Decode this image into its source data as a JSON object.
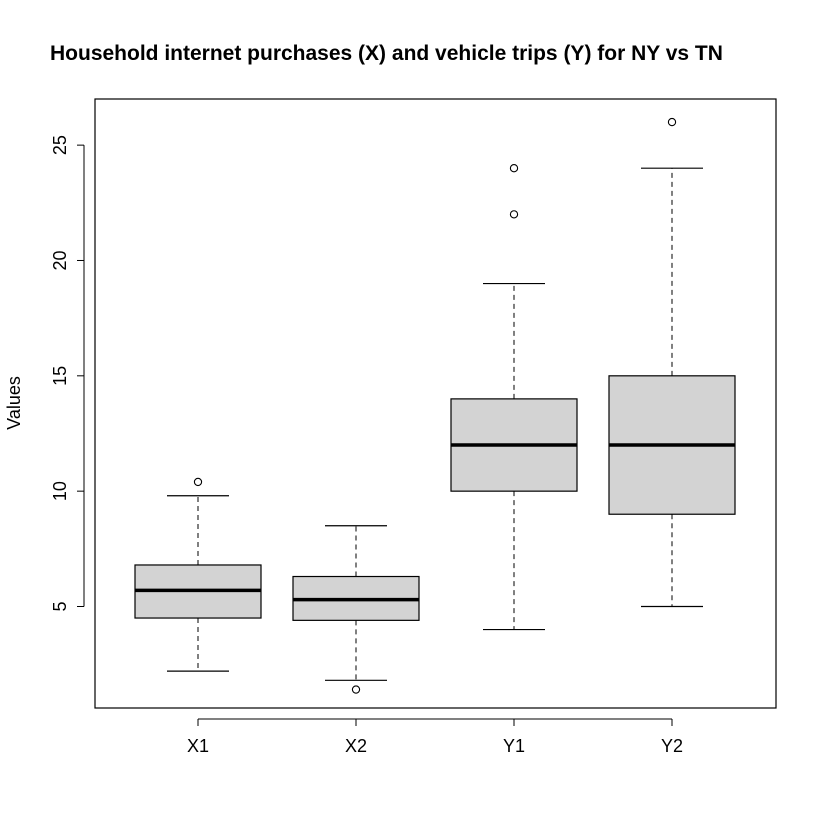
{
  "chart_data": {
    "type": "boxplot",
    "title": "Household internet purchases (X) and vehicle trips (Y) for NY vs TN",
    "xlabel": "",
    "ylabel": "Values",
    "ylim": [
      0.6,
      27.0
    ],
    "yticks": [
      5,
      10,
      15,
      20,
      25
    ],
    "grid": false,
    "categories": [
      "X1",
      "X2",
      "Y1",
      "Y2"
    ],
    "boxes": [
      {
        "category": "X1",
        "whisker_low": 2.2,
        "q1": 4.5,
        "median": 5.7,
        "q3": 6.8,
        "whisker_high": 9.8,
        "outliers": [
          10.4
        ]
      },
      {
        "category": "X2",
        "whisker_low": 1.8,
        "q1": 4.4,
        "median": 5.3,
        "q3": 6.3,
        "whisker_high": 8.5,
        "outliers": [
          1.4
        ]
      },
      {
        "category": "Y1",
        "whisker_low": 4.0,
        "q1": 10.0,
        "median": 12.0,
        "q3": 14.0,
        "whisker_high": 19.0,
        "outliers": [
          22.0,
          24.0
        ]
      },
      {
        "category": "Y2",
        "whisker_low": 5.0,
        "q1": 9.0,
        "median": 12.0,
        "q3": 15.0,
        "whisker_high": 24.0,
        "outliers": [
          26.0
        ]
      }
    ],
    "colors": {
      "box_fill": "#d3d3d3",
      "stroke": "#000000"
    }
  }
}
